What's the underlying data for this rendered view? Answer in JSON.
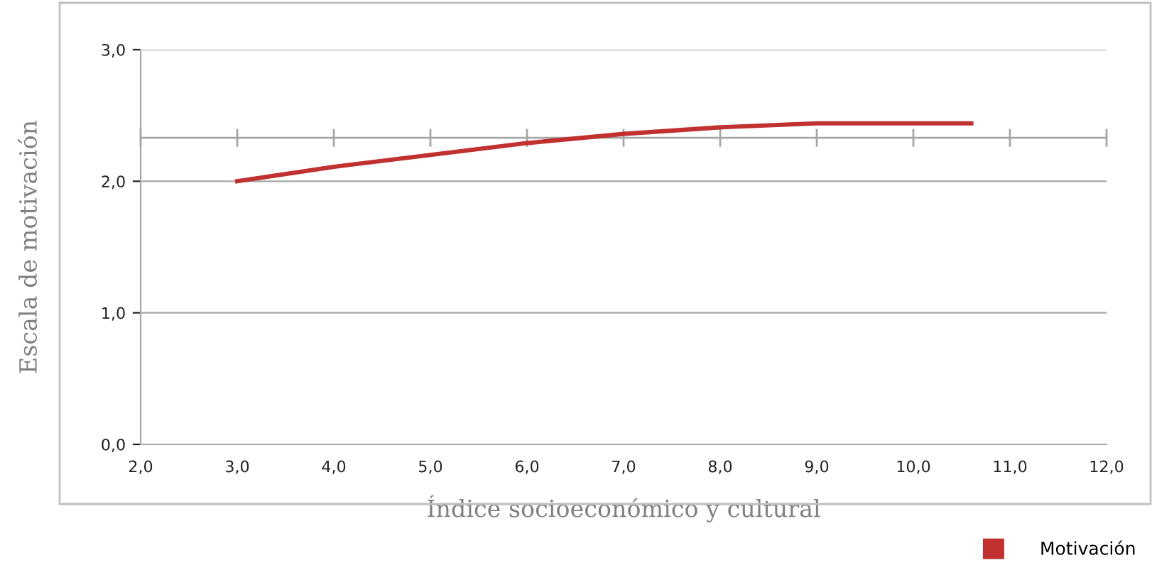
{
  "chart_data": {
    "type": "line",
    "xlabel": "Índice socioeconómico y cultural",
    "ylabel": "Escala de motivación",
    "series": [
      {
        "name": "Motivación",
        "color": "#c0312f",
        "x": [
          3.0,
          4.0,
          5.0,
          6.0,
          7.0,
          8.0,
          9.0,
          10.6
        ],
        "values": [
          2.0,
          2.11,
          2.2,
          2.29,
          2.36,
          2.41,
          2.44,
          2.44
        ]
      }
    ],
    "xlim": [
      2,
      12
    ],
    "ylim": [
      0,
      3
    ],
    "xticks": [
      {
        "value": 2,
        "label": "2,0"
      },
      {
        "value": 3,
        "label": "3,0"
      },
      {
        "value": 4,
        "label": "4,0"
      },
      {
        "value": 5,
        "label": "5,0"
      },
      {
        "value": 6,
        "label": "6,0"
      },
      {
        "value": 7,
        "label": "7,0"
      },
      {
        "value": 8,
        "label": "8,0"
      },
      {
        "value": 9,
        "label": "9,0"
      },
      {
        "value": 10,
        "label": "10,0"
      },
      {
        "value": 11,
        "label": "11,0"
      },
      {
        "value": 12,
        "label": "12,0"
      }
    ],
    "yticks": [
      {
        "value": 0,
        "label": "0,0"
      },
      {
        "value": 1,
        "label": "1,0"
      },
      {
        "value": 2,
        "label": "2,0"
      },
      {
        "value": 3,
        "label": "3,0"
      }
    ],
    "ref_lines": [
      {
        "axis": "y",
        "value": 2.33,
        "color": "#a6a6a6"
      }
    ],
    "grid": "y",
    "legend": "bottom right",
    "marker": "none",
    "line_style": "solid"
  }
}
